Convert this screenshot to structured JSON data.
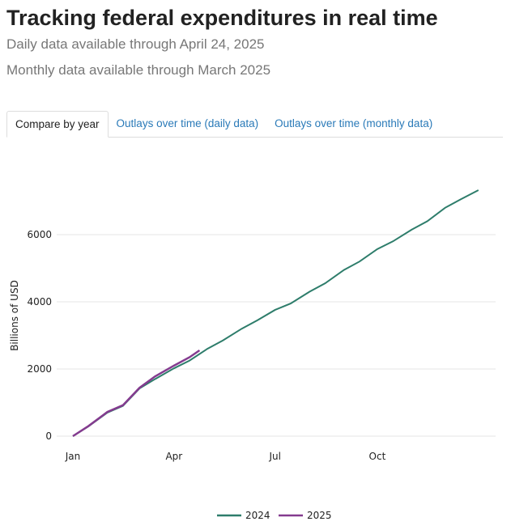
{
  "header": {
    "title": "Tracking federal expenditures in real time",
    "subtitle1": "Daily data available through April 24, 2025",
    "subtitle2": "Monthly data available through March 2025"
  },
  "tabs": [
    {
      "label": "Compare by year",
      "active": true
    },
    {
      "label": "Outlays over time (daily data)"
    },
    {
      "label": "Outlays over time (monthly data)"
    }
  ],
  "chart_data": {
    "type": "line",
    "ylabel": "Billions of USD",
    "ylim": [
      0,
      7500
    ],
    "yticks": [
      0,
      2000,
      4000,
      6000
    ],
    "xticks": [
      {
        "date": "01-01",
        "label": "Jan"
      },
      {
        "date": "04-01",
        "label": "Apr"
      },
      {
        "date": "07-01",
        "label": "Jul"
      },
      {
        "date": "10-01",
        "label": "Oct"
      }
    ],
    "grid": true,
    "legend": "bottom",
    "series": [
      {
        "name": "2024",
        "color": "#2e7d6b",
        "points": [
          [
            "01-01",
            0
          ],
          [
            "01-15",
            290
          ],
          [
            "02-01",
            700
          ],
          [
            "02-15",
            900
          ],
          [
            "03-01",
            1420
          ],
          [
            "03-15",
            1700
          ],
          [
            "04-01",
            2020
          ],
          [
            "04-15",
            2250
          ],
          [
            "05-01",
            2600
          ],
          [
            "05-15",
            2850
          ],
          [
            "06-01",
            3200
          ],
          [
            "06-15",
            3450
          ],
          [
            "07-01",
            3760
          ],
          [
            "07-15",
            3950
          ],
          [
            "08-01",
            4300
          ],
          [
            "08-15",
            4550
          ],
          [
            "09-01",
            4950
          ],
          [
            "09-15",
            5200
          ],
          [
            "10-01",
            5570
          ],
          [
            "10-15",
            5800
          ],
          [
            "11-01",
            6150
          ],
          [
            "11-15",
            6400
          ],
          [
            "12-01",
            6800
          ],
          [
            "12-15",
            7050
          ],
          [
            "12-31",
            7325
          ]
        ]
      },
      {
        "name": "2025",
        "color": "#843b8f",
        "points": [
          [
            "01-01",
            0
          ],
          [
            "01-15",
            300
          ],
          [
            "02-01",
            720
          ],
          [
            "02-15",
            920
          ],
          [
            "03-01",
            1440
          ],
          [
            "03-15",
            1780
          ],
          [
            "04-01",
            2100
          ],
          [
            "04-15",
            2350
          ],
          [
            "04-24",
            2554
          ]
        ]
      }
    ]
  }
}
